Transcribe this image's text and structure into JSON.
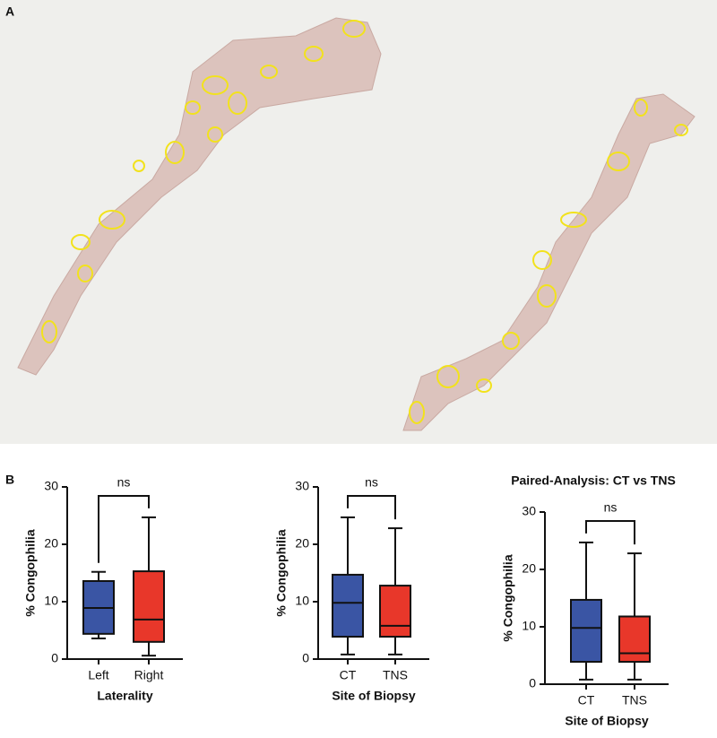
{
  "panel_labels": [
    "A",
    "B"
  ],
  "chart_data": [
    {
      "type": "box",
      "ylabel": "% Congophilia",
      "xlabel": "Laterality",
      "categories": [
        "Left",
        "Right"
      ],
      "colors": [
        "#3a55a4",
        "#e8372a"
      ],
      "boxes": [
        {
          "min": 3.6,
          "q1": 4.4,
          "median": 8.9,
          "q3": 13.6,
          "max": 15.2
        },
        {
          "min": 0.6,
          "q1": 3.0,
          "median": 6.9,
          "q3": 15.3,
          "max": 24.7
        }
      ],
      "annotation": "ns",
      "ylim": [
        0,
        30
      ],
      "yticks": [
        0,
        10,
        20,
        30
      ]
    },
    {
      "type": "box",
      "ylabel": "% Congophilia",
      "xlabel": "Site of Biopsy",
      "categories": [
        "CT",
        "TNS"
      ],
      "colors": [
        "#3a55a4",
        "#e8372a"
      ],
      "boxes": [
        {
          "min": 0.8,
          "q1": 3.9,
          "median": 9.8,
          "q3": 14.7,
          "max": 24.7
        },
        {
          "min": 0.8,
          "q1": 3.9,
          "median": 5.8,
          "q3": 12.8,
          "max": 22.8
        }
      ],
      "annotation": "ns",
      "ylim": [
        0,
        30
      ],
      "yticks": [
        0,
        10,
        20,
        30
      ]
    },
    {
      "type": "box",
      "title": "Paired-Analysis: CT vs TNS",
      "ylabel": "% Congophilia",
      "xlabel": "Site of Biopsy",
      "categories": [
        "CT",
        "TNS"
      ],
      "colors": [
        "#3a55a4",
        "#e8372a"
      ],
      "boxes": [
        {
          "min": 0.8,
          "q1": 3.9,
          "median": 9.8,
          "q3": 14.7,
          "max": 24.7
        },
        {
          "min": 0.8,
          "q1": 3.9,
          "median": 5.4,
          "q3": 11.8,
          "max": 22.8
        }
      ],
      "annotation": "ns",
      "ylim": [
        0,
        30
      ],
      "yticks": [
        0,
        10,
        20,
        30
      ]
    }
  ]
}
